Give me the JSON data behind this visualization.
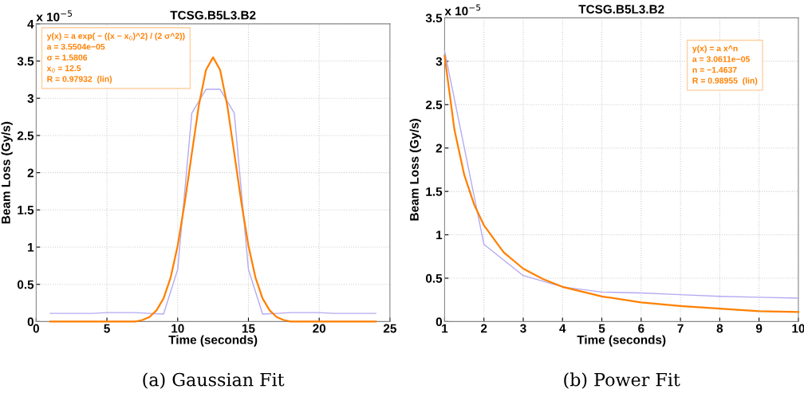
{
  "chart_data": [
    {
      "type": "line",
      "title": "TCSG.B5L3.B2",
      "xlabel": "Time (seconds)",
      "ylabel": "Beam Loss (Gy/s)",
      "xlim": [
        0,
        25
      ],
      "xticks": [
        0,
        5,
        10,
        15,
        20,
        25
      ],
      "ylim": [
        0,
        4
      ],
      "yticks": [
        0,
        0.5,
        1,
        1.5,
        2,
        2.5,
        3,
        3.5,
        4
      ],
      "grid": true,
      "line_style": "solid",
      "series": [
        {
          "color": "#b4aaf2",
          "x": [
            1,
            2,
            3,
            4,
            5,
            6,
            7,
            8,
            9,
            10,
            11,
            12,
            13,
            14,
            15,
            16,
            17,
            18,
            19,
            20,
            21,
            22,
            23,
            24
          ],
          "values": [
            0.11,
            0.11,
            0.11,
            0.11,
            0.12,
            0.12,
            0.12,
            0.11,
            0.1,
            0.7,
            2.8,
            3.12,
            3.12,
            2.8,
            0.7,
            0.1,
            0.11,
            0.12,
            0.12,
            0.12,
            0.11,
            0.11,
            0.11,
            0.11
          ]
        },
        {
          "color": "#ff8000",
          "x": [
            1,
            3,
            5,
            6,
            7,
            7.5,
            8,
            8.5,
            9,
            9.5,
            10,
            10.5,
            11,
            11.5,
            12,
            12.5,
            13,
            13.5,
            14,
            14.5,
            15,
            15.5,
            16,
            16.5,
            17,
            17.5,
            18,
            19,
            20,
            22,
            24
          ],
          "values": [
            0,
            0,
            0,
            0,
            0,
            0.02,
            0.06,
            0.15,
            0.31,
            0.59,
            1.02,
            1.6,
            2.26,
            2.91,
            3.38,
            3.55,
            3.38,
            2.91,
            2.26,
            1.6,
            1.02,
            0.59,
            0.31,
            0.15,
            0.06,
            0.02,
            0,
            0,
            0,
            0,
            0
          ]
        }
      ],
      "annotations": [
        "x 10$^{−5}$",
        "y(x) = a exp( − ((x − x$_{0}$)^2) / (2 σ^2))\na = 3.5504e−05\nσ = 1.5806\nx$_{0}$ = 12.5\nR = 0.97932  (lin)",
        "(a) Gaussian Fit"
      ]
    },
    {
      "type": "line",
      "title": "TCSG.B5L3.B2",
      "xlabel": "Time (seconds)",
      "ylabel": "Beam Loss (Gy/s)",
      "xlim": [
        1,
        10
      ],
      "xticks": [
        1,
        2,
        3,
        4,
        5,
        6,
        7,
        8,
        9,
        10
      ],
      "ylim": [
        0,
        3.5
      ],
      "yticks": [
        0,
        0.5,
        1,
        1.5,
        2,
        2.5,
        3,
        3.5
      ],
      "grid": true,
      "line_style": "solid",
      "series": [
        {
          "color": "#b4aaf2",
          "x": [
            1,
            2,
            3,
            4,
            5,
            6,
            7,
            8,
            9,
            10
          ],
          "values": [
            3.12,
            0.89,
            0.53,
            0.4,
            0.34,
            0.33,
            0.31,
            0.29,
            0.28,
            0.27
          ]
        },
        {
          "color": "#ff8000",
          "x": [
            1,
            1.25,
            1.5,
            1.75,
            2,
            2.5,
            3,
            3.5,
            4,
            5,
            6,
            7,
            8,
            9,
            10
          ],
          "values": [
            3.06,
            2.21,
            1.69,
            1.35,
            1.11,
            0.8,
            0.61,
            0.49,
            0.4,
            0.29,
            0.22,
            0.18,
            0.15,
            0.12,
            0.11
          ]
        }
      ],
      "annotations": [
        "x 10$^{−5}$",
        "y(x) = a x^n\na = 3.0611e−05\nn = −1.4637\nR = 0.98955  (lin)",
        "(b) Power Fit"
      ]
    }
  ]
}
